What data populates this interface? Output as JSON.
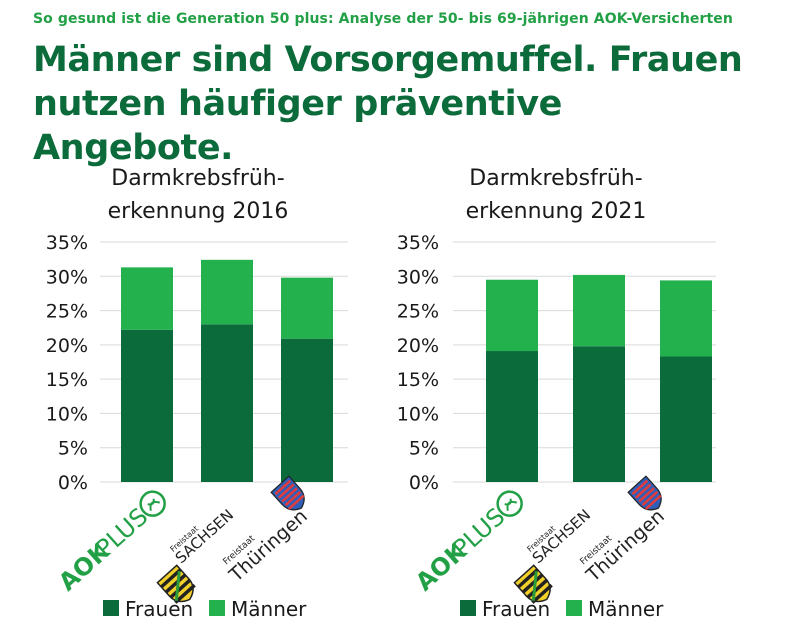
{
  "header": {
    "subtitle": "So gesund ist die Generation 50 plus: Analyse der 50- bis 69-jährigen AOK-Versicherten",
    "headline": "Männer sind Vorsorgemuffel. Frauen nutzen häufiger präventive Angebote."
  },
  "colors": {
    "frauen": "#0b6b3a",
    "maenner": "#22b14c",
    "grid": "#d9d9d9",
    "text": "#1a1a1a",
    "brand": "#22a046"
  },
  "logos": {
    "aok_aok": "AOK",
    "aok_plus": "PLUS",
    "sachsen_small": "Freistaat",
    "sachsen_big": "SACHSEN",
    "thuer_small": "Freistaat",
    "thuer_big": "Thüringen"
  },
  "chart_data": [
    {
      "type": "bar",
      "stacked": true,
      "title_lines": [
        "Darmkrebsfrüh-",
        "erkennung 2016"
      ],
      "categories": [
        "AOK PLUS",
        "Freistaat Sachsen",
        "Freistaat Thüringen"
      ],
      "series": [
        {
          "name": "Frauen",
          "values": [
            22.2,
            23.0,
            20.9
          ]
        },
        {
          "name": "Männer",
          "values": [
            9.1,
            9.4,
            8.9
          ]
        }
      ],
      "ylim": [
        0,
        35
      ],
      "yticks": [
        "0%",
        "5%",
        "10%",
        "15%",
        "20%",
        "25%",
        "30%",
        "35%"
      ],
      "legend": [
        "Frauen",
        "Männer"
      ]
    },
    {
      "type": "bar",
      "stacked": true,
      "title_lines": [
        "Darmkrebsfrüh-",
        "erkennung 2021"
      ],
      "categories": [
        "AOK PLUS",
        "Freistaat Sachsen",
        "Freistaat Thüringen"
      ],
      "series": [
        {
          "name": "Frauen",
          "values": [
            19.1,
            19.8,
            18.3
          ]
        },
        {
          "name": "Männer",
          "values": [
            10.4,
            10.4,
            11.1
          ]
        }
      ],
      "ylim": [
        0,
        35
      ],
      "yticks": [
        "0%",
        "5%",
        "10%",
        "15%",
        "20%",
        "25%",
        "30%",
        "35%"
      ],
      "legend": [
        "Frauen",
        "Männer"
      ]
    }
  ]
}
